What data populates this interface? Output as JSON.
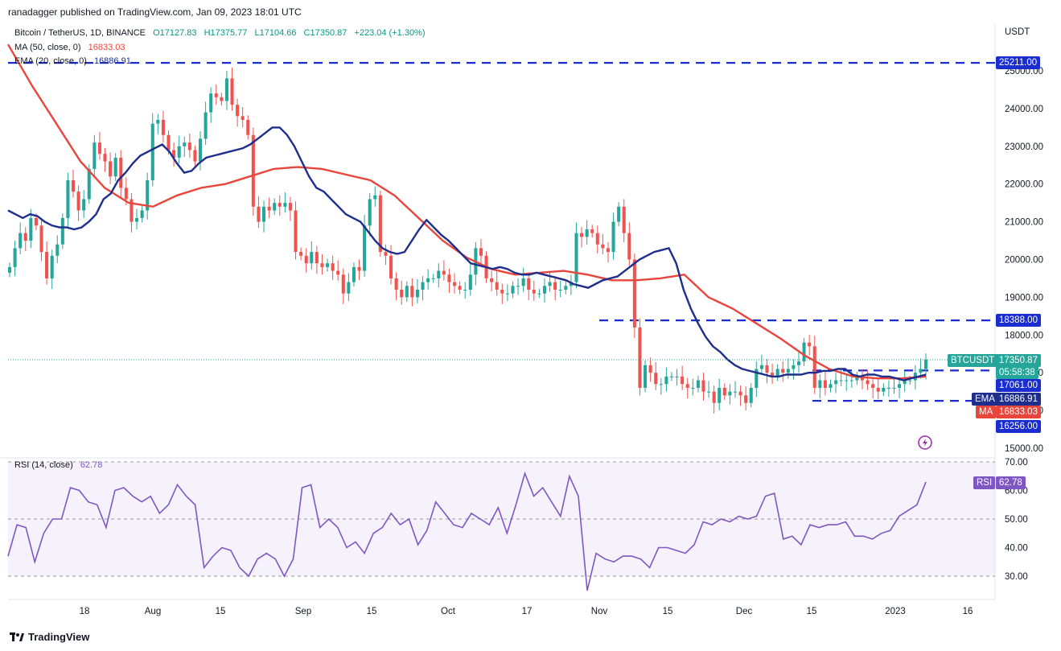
{
  "publisher": "ranadagger published on TradingView.com, Jan 09, 2023 18:01 UTC",
  "legend": {
    "symbol": "Bitcoin / TetherUS, 1D, BINANCE",
    "open": "O17127.83",
    "high": "H17375.77",
    "low": "L17104.66",
    "close": "C17350.87",
    "change": "+223.04 (+1.30%)",
    "ma_label": "MA (50, close, 0)",
    "ma_value": "16833.03",
    "ema_label": "EMA (20, close, 0)",
    "ema_value": "16886.91",
    "rsi_label": "RSI (14, close)",
    "rsi_value": "62.78"
  },
  "currency": "USDT",
  "ticker_tag": "BTCUSDT",
  "last_price": "17350.87",
  "countdown": "05:58:38",
  "ema_tag": "EMA",
  "ma_tag": "MA",
  "rsi_tag": "RSI",
  "levels": {
    "l1": "25211.00",
    "l2": "18388.00",
    "l3": "17061.00",
    "l4": "16256.00",
    "ema": "16886.91",
    "ma": "16833.03",
    "rsi": "62.78"
  },
  "brand": "TradingView",
  "colors": {
    "up": "#26a69a",
    "down": "#ef5350",
    "ema": "#1e2e8c",
    "ma": "#e8453c",
    "rsi": "#7e57c2",
    "level": "#1a2ed0"
  },
  "chart_data": [
    {
      "type": "candlestick",
      "title": "Bitcoin / TetherUS, 1D, BINANCE",
      "ylabel": "USDT",
      "ylim": [
        14900,
        25600
      ],
      "y_ticks": [
        15000,
        16000,
        17000,
        18000,
        19000,
        20000,
        21000,
        22000,
        23000,
        24000,
        25000
      ],
      "y_tick_labels": [
        "15000.00",
        "16000.00",
        "17000.00",
        "18000.00",
        "19000.00",
        "20000.00",
        "21000.00",
        "22000.00",
        "23000.00",
        "24000.00",
        "25000.00"
      ],
      "x_tick_labels": [
        "18",
        "Aug",
        "15",
        "Sep",
        "15",
        "Oct",
        "17",
        "Nov",
        "15",
        "Dec",
        "15",
        "2023",
        "16"
      ],
      "x_ticks": [
        17,
        31,
        46,
        63,
        78,
        93,
        110,
        124,
        139,
        154,
        169,
        186,
        201
      ],
      "horizontal_levels": [
        25211,
        18388,
        17061,
        16256
      ],
      "series": [
        {
          "name": "BTCUSDT",
          "close": [
            19800,
            20300,
            20700,
            20500,
            21100,
            20900,
            20200,
            19500,
            20100,
            20400,
            21100,
            22100,
            21800,
            21300,
            21600,
            22400,
            23100,
            22800,
            22600,
            22200,
            22700,
            21900,
            21600,
            21000,
            21100,
            21300,
            22100,
            23600,
            23700,
            23300,
            22900,
            22700,
            23000,
            23100,
            22900,
            22600,
            23200,
            23900,
            24400,
            24300,
            24200,
            24800,
            24100,
            23800,
            23700,
            23300,
            21400,
            21000,
            21400,
            21300,
            21500,
            21400,
            21500,
            21300,
            20200,
            20100,
            19900,
            20200,
            19900,
            19800,
            19900,
            19700,
            19600,
            19100,
            19400,
            19800,
            19700,
            20900,
            21600,
            21700,
            20200,
            20100,
            19500,
            19200,
            19000,
            19300,
            19000,
            19200,
            19400,
            19500,
            19500,
            19700,
            19600,
            19400,
            19300,
            19200,
            19200,
            19600,
            20300,
            20100,
            19500,
            19400,
            19200,
            19100,
            19100,
            19300,
            19300,
            19500,
            19200,
            19100,
            19100,
            19300,
            19400,
            19200,
            19200,
            19300,
            19400,
            20700,
            20600,
            20800,
            20700,
            20400,
            20300,
            20200,
            21000,
            21400,
            20700,
            20000,
            18200,
            16600,
            17200,
            17000,
            16700,
            16700,
            16900,
            16900,
            16900,
            16700,
            16600,
            16600,
            16800,
            16500,
            16500,
            16200,
            16600,
            16400,
            16500,
            16500,
            16400,
            16200,
            16600,
            17100,
            17200,
            17000,
            16900,
            17100,
            17000,
            17100,
            17200,
            17300,
            17800,
            17700,
            16600,
            16800,
            16600,
            16700,
            16800,
            16800,
            16800,
            16800,
            16900,
            16800,
            16700,
            16600,
            16500,
            16600,
            16600,
            16600,
            16700,
            16800,
            16800,
            17000,
            17100,
            17350
          ]
        },
        {
          "name": "EMA (20, close, 0)",
          "values": [
            21300,
            21200,
            21100,
            21200,
            21150,
            21000,
            20900,
            20850,
            20850,
            20800,
            20850,
            21000,
            21200,
            21600,
            21750,
            22100,
            22300,
            22550,
            22750,
            22850,
            22950,
            23050,
            22850,
            22550,
            22300,
            22350,
            22550,
            22700,
            22750,
            22800,
            22850,
            22900,
            22950,
            23050,
            23200,
            23350,
            23500,
            23500,
            23300,
            23000,
            22600,
            22200,
            21900,
            21800,
            21600,
            21400,
            21200,
            21100,
            21000,
            20750,
            20500,
            20300,
            20200,
            20150,
            20200,
            20500,
            20800,
            21050,
            20850,
            20650,
            20500,
            20300,
            20100,
            19900,
            19850,
            19800,
            19750,
            19800,
            19750,
            19650,
            19600,
            19600,
            19650,
            19600,
            19550,
            19500,
            19450,
            19350,
            19300,
            19250,
            19350,
            19450,
            19500,
            19550,
            19700,
            19850,
            20000,
            20100,
            20200,
            20250,
            20300,
            19900,
            19200,
            18700,
            18300,
            17950,
            17700,
            17550,
            17350,
            17200,
            17100,
            17050,
            17000,
            16950,
            16900,
            16900,
            16950,
            16950,
            16950,
            17000,
            17000,
            17050,
            17050,
            17100,
            17100,
            16950,
            16900,
            16950,
            16950,
            16900,
            16900,
            16850,
            16800,
            16850,
            16900,
            16950
          ]
        },
        {
          "name": "MA (50, close, 0)",
          "values": [
            25700,
            24600,
            23600,
            22600,
            21900,
            21500,
            21400,
            21700,
            21900,
            22000,
            22200,
            22400,
            22450,
            22400,
            22250,
            22100,
            21700,
            21100,
            20500,
            20050,
            19750,
            19600,
            19650,
            19700,
            19600,
            19450,
            19450,
            19500,
            19600,
            19000,
            18700,
            18300,
            17900,
            17450,
            17100,
            16900,
            16850,
            16850,
            16900
          ]
        },
        {
          "name": "RSI (14, close)",
          "ylim": [
            25,
            72
          ],
          "y_ticks": [
            30,
            40,
            50,
            60,
            70
          ],
          "y_tick_labels": [
            "30.00",
            "40.00",
            "50.00",
            "60.00",
            "70.00"
          ],
          "values": [
            37,
            48,
            47,
            35,
            45,
            50,
            50,
            61,
            60,
            56,
            55,
            47,
            60,
            61,
            58,
            56,
            58,
            52,
            55,
            62,
            58,
            55,
            33,
            37,
            40,
            39,
            33,
            30,
            36,
            38,
            36,
            30,
            36,
            61,
            62,
            47,
            50,
            47,
            40,
            42,
            38,
            45,
            47,
            52,
            48,
            50,
            41,
            46,
            56,
            52,
            48,
            47,
            52,
            50,
            48,
            54,
            45,
            55,
            66,
            58,
            61,
            56,
            51,
            65,
            58,
            25,
            38,
            36,
            35,
            37,
            37,
            36,
            33,
            40,
            40,
            39,
            38,
            41,
            49,
            48,
            50,
            49,
            51,
            50,
            51,
            58,
            59,
            43,
            44,
            41,
            48,
            47,
            48,
            48,
            49,
            44,
            44,
            43,
            45,
            46,
            51,
            53,
            55,
            63
          ]
        }
      ]
    }
  ]
}
